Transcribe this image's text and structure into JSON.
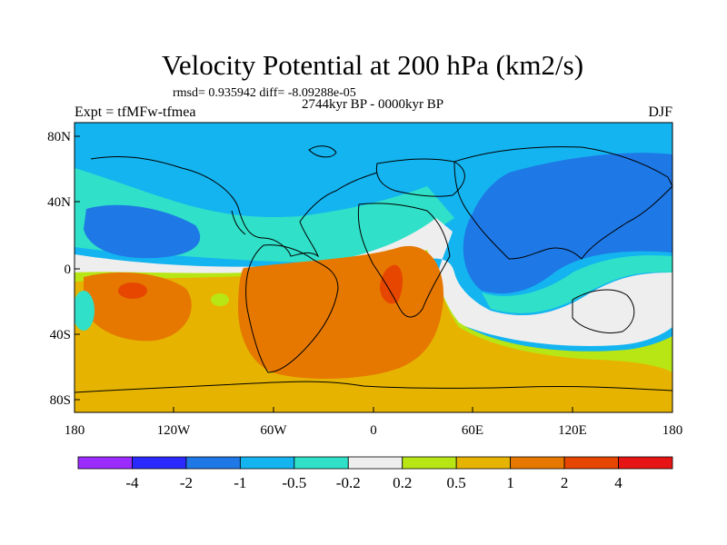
{
  "title": "Velocity Potential at 200 hPa (km2/s)",
  "stats_line": "rmsd= 0.935942 diff= -8.09288e-05",
  "period": "2744kyr BP - 0000kyr BP",
  "experiment": "Expt = tfMFw-tfmea",
  "season": "DJF",
  "map": {
    "lat_labels": [
      "80N",
      "40N",
      "0",
      "40S",
      "80S"
    ],
    "lon_labels": [
      "180",
      "120W",
      "60W",
      "0",
      "60E",
      "120E",
      "180"
    ]
  },
  "colorbar": {
    "colors": [
      "#9b2bff",
      "#2a2aff",
      "#1e78e6",
      "#14b4f0",
      "#30e0c8",
      "#eeeeee",
      "#b8e614",
      "#e6b400",
      "#e67800",
      "#e64600",
      "#e61414"
    ],
    "labels": [
      "-4",
      "-2",
      "-1",
      "-0.5",
      "-0.2",
      "0.2",
      "0.5",
      "1",
      "2",
      "4"
    ]
  },
  "palette": {
    "cyan": "#14b4f0",
    "blue": "#1e78e6",
    "teal": "#30e0c8",
    "white": "#eeeeee",
    "lime": "#b8e614",
    "yellow": "#e6b400",
    "orange": "#e67800",
    "red": "#e64600"
  }
}
